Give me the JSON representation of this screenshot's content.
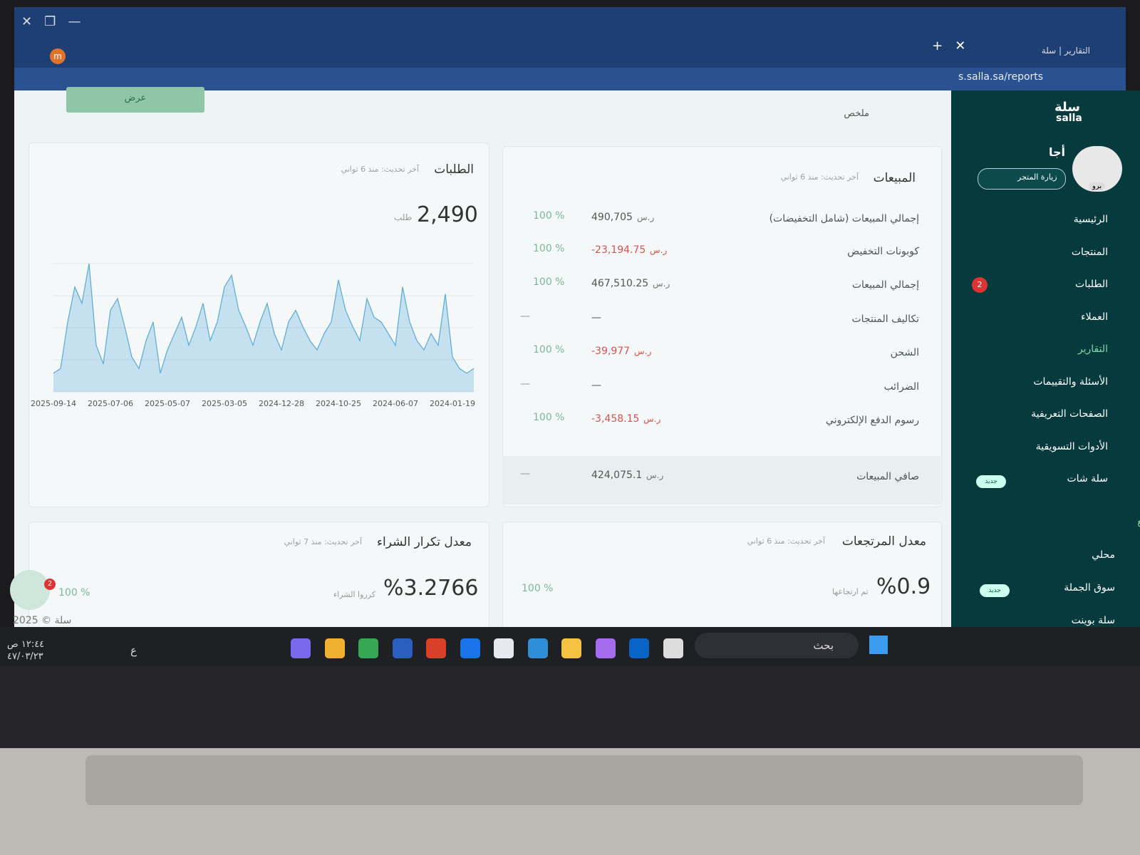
{
  "browser": {
    "tab_title": "التقارير | سلة",
    "url": "s.salla.sa/reports"
  },
  "sidebar": {
    "logo_ar": "سلة",
    "logo_en": "salla",
    "store_name": "أجا",
    "plan_badge": "برو",
    "visit_store": "زيارة المتجر",
    "menu": [
      {
        "label": "الرئيسية"
      },
      {
        "label": "المنتجات"
      },
      {
        "label": "الطلبات",
        "badge": "2"
      },
      {
        "label": "العملاء"
      },
      {
        "label": "التقارير"
      },
      {
        "label": "الأسئلة والتقييمات"
      },
      {
        "label": "الصفحات التعريفية"
      },
      {
        "label": "الأدوات التسويقية"
      },
      {
        "label": "سلة شات",
        "badge": "جديد"
      }
    ],
    "section_title": "قنوات البيع",
    "channels": [
      {
        "label": "محلي"
      },
      {
        "label": "سوق الجملة",
        "badge": "جديد"
      },
      {
        "label": "سلة بوينت"
      }
    ]
  },
  "filters": {
    "report_type": "ملخص",
    "apply": "عرض"
  },
  "sales_card": {
    "title": "المبيعات",
    "updated": "آخر تحديث: منذ 6 ثواني",
    "currency": "ر.س",
    "rows": [
      {
        "label": "إجمالي المبيعات (شامل التخفيضات)",
        "value": "490,705",
        "change": "100 %"
      },
      {
        "label": "كوبونات التخفيض",
        "value": "-23,194.75",
        "change": "100 %"
      },
      {
        "label": "إجمالي المبيعات",
        "value": "467,510.25",
        "change": "100 %"
      },
      {
        "label": "تكاليف المنتجات",
        "value": "—",
        "change": "—"
      },
      {
        "label": "الشحن",
        "value": "-39,977",
        "change": "100 %"
      },
      {
        "label": "الضرائب",
        "value": "—",
        "change": "—"
      },
      {
        "label": "رسوم الدفع الإلكتروني",
        "value": "-3,458.15",
        "change": "100 %"
      },
      {
        "label": "صافي المبيعات",
        "value": "424,075.1",
        "change": "—"
      }
    ]
  },
  "orders_card": {
    "title": "الطلبات",
    "updated": "آخر تحديث: منذ 6 ثواني",
    "total": "2,490",
    "unit": "طلب"
  },
  "chart_data": {
    "type": "line",
    "color": "#5aa9d6",
    "categories": [
      "2025-09-14",
      null,
      null,
      null,
      null,
      null,
      null,
      null,
      "2025-07-06",
      null,
      null,
      null,
      null,
      null,
      null,
      null,
      "2025-05-07",
      null,
      null,
      null,
      null,
      null,
      null,
      null,
      "2025-03-05",
      null,
      null,
      null,
      null,
      null,
      null,
      null,
      "2024-12-28",
      null,
      null,
      null,
      null,
      null,
      null,
      null,
      "2024-10-25",
      null,
      null,
      null,
      null,
      null,
      null,
      null,
      "2024-06-07",
      null,
      null,
      null,
      null,
      null,
      null,
      null,
      "2024-01-19",
      null,
      null,
      null
    ],
    "values": [
      8,
      10,
      30,
      45,
      38,
      55,
      20,
      12,
      35,
      40,
      28,
      15,
      10,
      22,
      30,
      8,
      18,
      25,
      32,
      20,
      28,
      38,
      22,
      30,
      45,
      50,
      35,
      28,
      20,
      30,
      38,
      25,
      18,
      30,
      35,
      28,
      22,
      18,
      25,
      30,
      48,
      35,
      28,
      22,
      40,
      32,
      30,
      25,
      20,
      45,
      30,
      22,
      18,
      25,
      20,
      42,
      15,
      10,
      8,
      10
    ]
  },
  "returns_card": {
    "title": "معدل المرتجعات",
    "updated": "آخر تحديث: منذ 6 ثواني",
    "value": "%0.9",
    "unit": "تم ارتجاعها",
    "change": "100 %"
  },
  "repeat_card": {
    "title": "معدل تكرار الشراء",
    "updated": "آخر تحديث: منذ 7 ثواني",
    "value": "%3.2766",
    "unit": "كرروا الشراء"
  },
  "chat_widget": {
    "badge": "2",
    "value": "100 %"
  },
  "footer": "2025 © سلة",
  "taskbar": {
    "search": "بحث",
    "time": "١٢:٤٤ ص",
    "date": "٤٧/٠٣/٢٣",
    "language": "ع"
  }
}
